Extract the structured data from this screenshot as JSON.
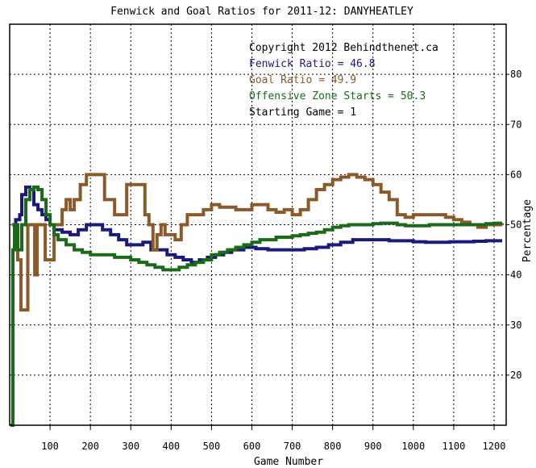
{
  "chart_data": {
    "type": "line",
    "title": "Fenwick and Goal Ratios for 2011-12: DANYHEATLEY",
    "xlabel": "Game Number",
    "ylabel": "Percentage",
    "xlim": [
      0,
      1230
    ],
    "ylim": [
      10,
      90
    ],
    "x_ticks": [
      100,
      200,
      300,
      400,
      500,
      600,
      700,
      800,
      900,
      1000,
      1100,
      1200
    ],
    "y_ticks": [
      20,
      30,
      40,
      50,
      60,
      70,
      80
    ],
    "grid": true,
    "legend_position": "top-right",
    "annotations": [
      {
        "text": "Copyright 2012 Behindthenet.ca",
        "color": "#000000"
      },
      {
        "text": "Fenwick Ratio = 46.8",
        "color": "#1a1a7a"
      },
      {
        "text": "Goal Ratio = 49.9",
        "color": "#8a5a2a"
      },
      {
        "text": "Offensive Zone Starts = 50.3",
        "color": "#1a6a1a"
      },
      {
        "text": "Starting Game = 1",
        "color": "#000000"
      }
    ],
    "series": [
      {
        "color": "#1a1a7a",
        "points": [
          [
            5,
            50
          ],
          [
            15,
            51
          ],
          [
            25,
            52
          ],
          [
            30,
            56
          ],
          [
            40,
            57.5
          ],
          [
            50,
            57
          ],
          [
            60,
            54
          ],
          [
            70,
            53
          ],
          [
            80,
            52
          ],
          [
            90,
            51
          ],
          [
            100,
            50
          ],
          [
            110,
            49
          ],
          [
            130,
            48.5
          ],
          [
            150,
            48
          ],
          [
            170,
            49
          ],
          [
            190,
            50
          ],
          [
            210,
            50
          ],
          [
            230,
            49
          ],
          [
            250,
            48
          ],
          [
            270,
            47
          ],
          [
            290,
            46
          ],
          [
            310,
            46
          ],
          [
            330,
            46.5
          ],
          [
            350,
            45
          ],
          [
            370,
            45
          ],
          [
            390,
            44
          ],
          [
            410,
            43.5
          ],
          [
            430,
            43
          ],
          [
            450,
            42.5
          ],
          [
            470,
            43
          ],
          [
            490,
            43.5
          ],
          [
            510,
            44
          ],
          [
            530,
            44.5
          ],
          [
            550,
            45
          ],
          [
            580,
            45.5
          ],
          [
            610,
            45.2
          ],
          [
            640,
            45
          ],
          [
            670,
            45
          ],
          [
            700,
            45
          ],
          [
            730,
            45.2
          ],
          [
            760,
            45.5
          ],
          [
            790,
            46
          ],
          [
            820,
            46.5
          ],
          [
            850,
            47
          ],
          [
            880,
            47
          ],
          [
            910,
            47
          ],
          [
            940,
            46.8
          ],
          [
            970,
            46.8
          ],
          [
            1000,
            46.6
          ],
          [
            1030,
            46.5
          ],
          [
            1060,
            46.5
          ],
          [
            1090,
            46.6
          ],
          [
            1120,
            46.6
          ],
          [
            1150,
            46.7
          ],
          [
            1180,
            46.8
          ],
          [
            1220,
            46.8
          ]
        ]
      },
      {
        "color": "#8a5a2a",
        "points": [
          [
            5,
            50
          ],
          [
            15,
            50
          ],
          [
            20,
            43
          ],
          [
            28,
            33
          ],
          [
            35,
            33
          ],
          [
            40,
            33
          ],
          [
            45,
            50
          ],
          [
            55,
            50
          ],
          [
            62,
            40
          ],
          [
            68,
            50
          ],
          [
            80,
            50
          ],
          [
            88,
            43
          ],
          [
            100,
            43
          ],
          [
            110,
            50
          ],
          [
            130,
            53
          ],
          [
            140,
            55
          ],
          [
            150,
            53
          ],
          [
            160,
            55
          ],
          [
            175,
            58
          ],
          [
            190,
            60
          ],
          [
            205,
            60
          ],
          [
            220,
            60
          ],
          [
            235,
            55
          ],
          [
            245,
            55
          ],
          [
            260,
            52
          ],
          [
            275,
            52
          ],
          [
            290,
            58
          ],
          [
            305,
            58
          ],
          [
            320,
            58
          ],
          [
            335,
            52
          ],
          [
            345,
            50
          ],
          [
            355,
            45
          ],
          [
            365,
            48
          ],
          [
            375,
            50
          ],
          [
            385,
            48
          ],
          [
            395,
            48
          ],
          [
            410,
            47
          ],
          [
            425,
            50
          ],
          [
            440,
            52
          ],
          [
            460,
            52
          ],
          [
            480,
            53
          ],
          [
            500,
            54
          ],
          [
            520,
            53.5
          ],
          [
            540,
            53.5
          ],
          [
            560,
            53
          ],
          [
            580,
            53
          ],
          [
            600,
            54
          ],
          [
            620,
            54
          ],
          [
            640,
            53
          ],
          [
            660,
            52.5
          ],
          [
            680,
            53
          ],
          [
            700,
            52
          ],
          [
            720,
            53
          ],
          [
            740,
            55
          ],
          [
            760,
            57
          ],
          [
            780,
            58
          ],
          [
            800,
            59
          ],
          [
            820,
            59.5
          ],
          [
            840,
            60
          ],
          [
            860,
            59.5
          ],
          [
            880,
            59
          ],
          [
            900,
            58
          ],
          [
            920,
            56.5
          ],
          [
            940,
            55
          ],
          [
            960,
            52
          ],
          [
            980,
            51.5
          ],
          [
            1000,
            52
          ],
          [
            1020,
            52
          ],
          [
            1040,
            52
          ],
          [
            1060,
            52
          ],
          [
            1080,
            51.5
          ],
          [
            1100,
            51
          ],
          [
            1120,
            50.5
          ],
          [
            1140,
            50
          ],
          [
            1160,
            49.5
          ],
          [
            1180,
            50
          ],
          [
            1200,
            50
          ],
          [
            1220,
            49.9
          ]
        ]
      },
      {
        "color": "#1a6a1a",
        "points": [
          [
            2,
            10
          ],
          [
            5,
            10
          ],
          [
            8,
            45
          ],
          [
            12,
            50
          ],
          [
            20,
            45
          ],
          [
            30,
            50
          ],
          [
            40,
            55
          ],
          [
            50,
            57
          ],
          [
            60,
            57.5
          ],
          [
            70,
            57
          ],
          [
            80,
            55
          ],
          [
            90,
            52
          ],
          [
            100,
            50
          ],
          [
            110,
            48
          ],
          [
            120,
            47
          ],
          [
            140,
            46
          ],
          [
            160,
            45
          ],
          [
            180,
            44.5
          ],
          [
            200,
            44
          ],
          [
            220,
            44
          ],
          [
            240,
            44
          ],
          [
            260,
            43.5
          ],
          [
            280,
            43.5
          ],
          [
            300,
            43
          ],
          [
            320,
            42.5
          ],
          [
            340,
            42
          ],
          [
            360,
            41.5
          ],
          [
            380,
            41
          ],
          [
            400,
            41
          ],
          [
            420,
            41.5
          ],
          [
            440,
            42
          ],
          [
            460,
            42.5
          ],
          [
            480,
            43
          ],
          [
            500,
            44
          ],
          [
            520,
            44.5
          ],
          [
            540,
            45
          ],
          [
            560,
            45.5
          ],
          [
            580,
            46
          ],
          [
            600,
            46.5
          ],
          [
            620,
            47
          ],
          [
            640,
            47
          ],
          [
            660,
            47.5
          ],
          [
            680,
            47.5
          ],
          [
            700,
            47.8
          ],
          [
            720,
            48
          ],
          [
            740,
            48.3
          ],
          [
            760,
            48.5
          ],
          [
            780,
            49
          ],
          [
            800,
            49.5
          ],
          [
            820,
            49.8
          ],
          [
            840,
            50
          ],
          [
            860,
            50
          ],
          [
            880,
            50
          ],
          [
            900,
            50.2
          ],
          [
            920,
            50.3
          ],
          [
            940,
            50.3
          ],
          [
            960,
            50
          ],
          [
            980,
            49.8
          ],
          [
            1000,
            49.8
          ],
          [
            1020,
            49.8
          ],
          [
            1040,
            50
          ],
          [
            1060,
            50
          ],
          [
            1080,
            50
          ],
          [
            1100,
            50
          ],
          [
            1120,
            50
          ],
          [
            1140,
            50
          ],
          [
            1160,
            50
          ],
          [
            1180,
            50.2
          ],
          [
            1200,
            50.3
          ],
          [
            1220,
            50.3
          ]
        ]
      }
    ]
  }
}
